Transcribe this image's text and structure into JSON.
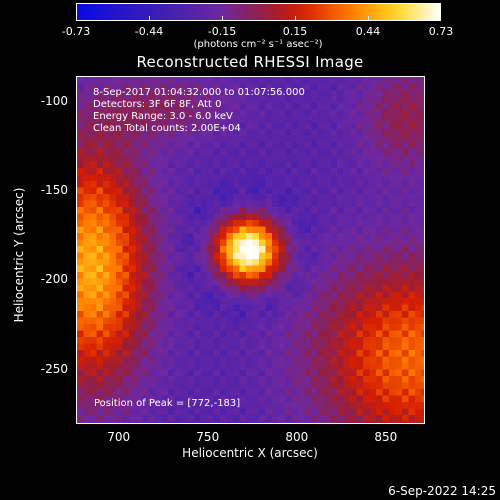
{
  "colorbar": {
    "ticks": [
      "-0.73",
      "-0.44",
      "-0.15",
      "0.15",
      "0.44",
      "0.73"
    ],
    "units": "(photons cm⁻² s⁻¹ asec⁻²)"
  },
  "title": "Reconstructed RHESSI Image",
  "info": {
    "time_range": "8-Sep-2017 01:04:32.000 to 01:07:56.000",
    "detectors": "Detectors: 3F 6F 8F, Att 0",
    "energy": "Energy Range: 3.0 - 6.0 keV",
    "algorithm": "Clean     Total counts: 2.00E+04",
    "peak": "Position of Peak = [772,-183]"
  },
  "axes": {
    "xlabel": "Heliocentric X (arcsec)",
    "ylabel": "Heliocentric Y (arcsec)",
    "xticks": [
      "700",
      "750",
      "800",
      "850"
    ],
    "yticks": [
      "-100",
      "-150",
      "-200",
      "-250"
    ]
  },
  "footer": {
    "date": "6-Sep-2022 14:25"
  },
  "colors": {
    "background": "#000000",
    "foreground": "#ffffff",
    "colormap": "rainbow/heat (blue-purple-red-yellow-white)"
  },
  "chart_data": {
    "type": "heatmap",
    "title": "Reconstructed RHESSI Image",
    "xlabel": "Heliocentric X (arcsec)",
    "ylabel": "Heliocentric Y (arcsec)",
    "xlim": [
      676,
      872
    ],
    "ylim": [
      -281,
      -86
    ],
    "zlim": [
      -0.73,
      0.73
    ],
    "peak": {
      "x": 772,
      "y": -183,
      "value": 0.73
    },
    "grid": false,
    "colorbar_position": "top"
  }
}
